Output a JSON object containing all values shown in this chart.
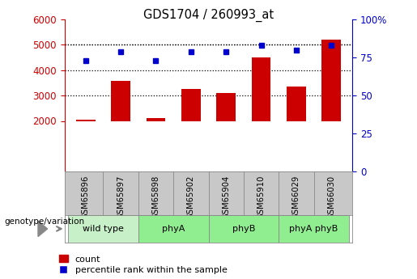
{
  "title": "GDS1704 / 260993_at",
  "samples": [
    "GSM65896",
    "GSM65897",
    "GSM65898",
    "GSM65902",
    "GSM65904",
    "GSM65910",
    "GSM66029",
    "GSM66030"
  ],
  "counts": [
    2050,
    3580,
    2100,
    3260,
    3100,
    4500,
    3360,
    5200
  ],
  "percentile_ranks": [
    73,
    79,
    73,
    79,
    79,
    83,
    80,
    83
  ],
  "groups": [
    {
      "label": "wild type",
      "indices": [
        0,
        1
      ],
      "color": "#c8f0c8"
    },
    {
      "label": "phyA",
      "indices": [
        2,
        3
      ],
      "color": "#90ee90"
    },
    {
      "label": "phyB",
      "indices": [
        4,
        5
      ],
      "color": "#90ee90"
    },
    {
      "label": "phyA phyB",
      "indices": [
        6,
        7
      ],
      "color": "#90ee90"
    }
  ],
  "group_label": "genotype/variation",
  "bar_color": "#cc0000",
  "dot_color": "#0000cc",
  "left_axis_color": "#cc0000",
  "right_axis_color": "#0000cc",
  "ylim_left": [
    0,
    6000
  ],
  "ylim_right": [
    0,
    100
  ],
  "yticks_left": [
    2000,
    3000,
    4000,
    5000,
    6000
  ],
  "yticks_right": [
    0,
    25,
    50,
    75,
    100
  ],
  "ytick_right_labels": [
    "0",
    "25",
    "50",
    "75",
    "100%"
  ],
  "grid_values": [
    3000,
    4000,
    5000
  ],
  "dotted_line_5000": 5000,
  "legend_count_label": "count",
  "legend_percentile_label": "percentile rank within the sample",
  "background_color": "#ffffff",
  "plot_bg_color": "#ffffff",
  "sample_box_color": "#c8c8c8",
  "bar_bottom": 2000
}
